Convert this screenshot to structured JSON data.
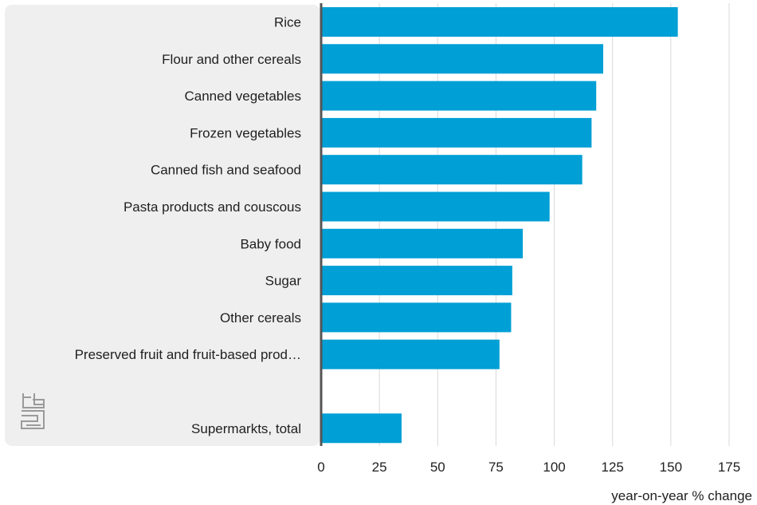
{
  "chart_data": {
    "type": "bar",
    "orientation": "horizontal",
    "title": "",
    "xlabel": "year-on-year % change",
    "ylabel": "",
    "xlim": [
      0,
      175
    ],
    "xticks": [
      0,
      25,
      50,
      75,
      100,
      125,
      150,
      175
    ],
    "grid": "vertical",
    "categories": [
      "Rice",
      "Flour and other cereals",
      "Canned vegetables",
      "Frozen vegetables",
      "Canned fish and seafood",
      "Pasta products and couscous",
      "Baby food",
      "Sugar",
      "Other cereals",
      "Preserved fruit and fruit-based prod…",
      "",
      "Supermarkts, total"
    ],
    "values": [
      153,
      121,
      118,
      116,
      112,
      98,
      86.5,
      82,
      81.5,
      76.5,
      null,
      34.5
    ],
    "bar_color": "#009fd6"
  },
  "logo": {
    "icon": "cbs-logo-icon",
    "text": "cbs"
  }
}
